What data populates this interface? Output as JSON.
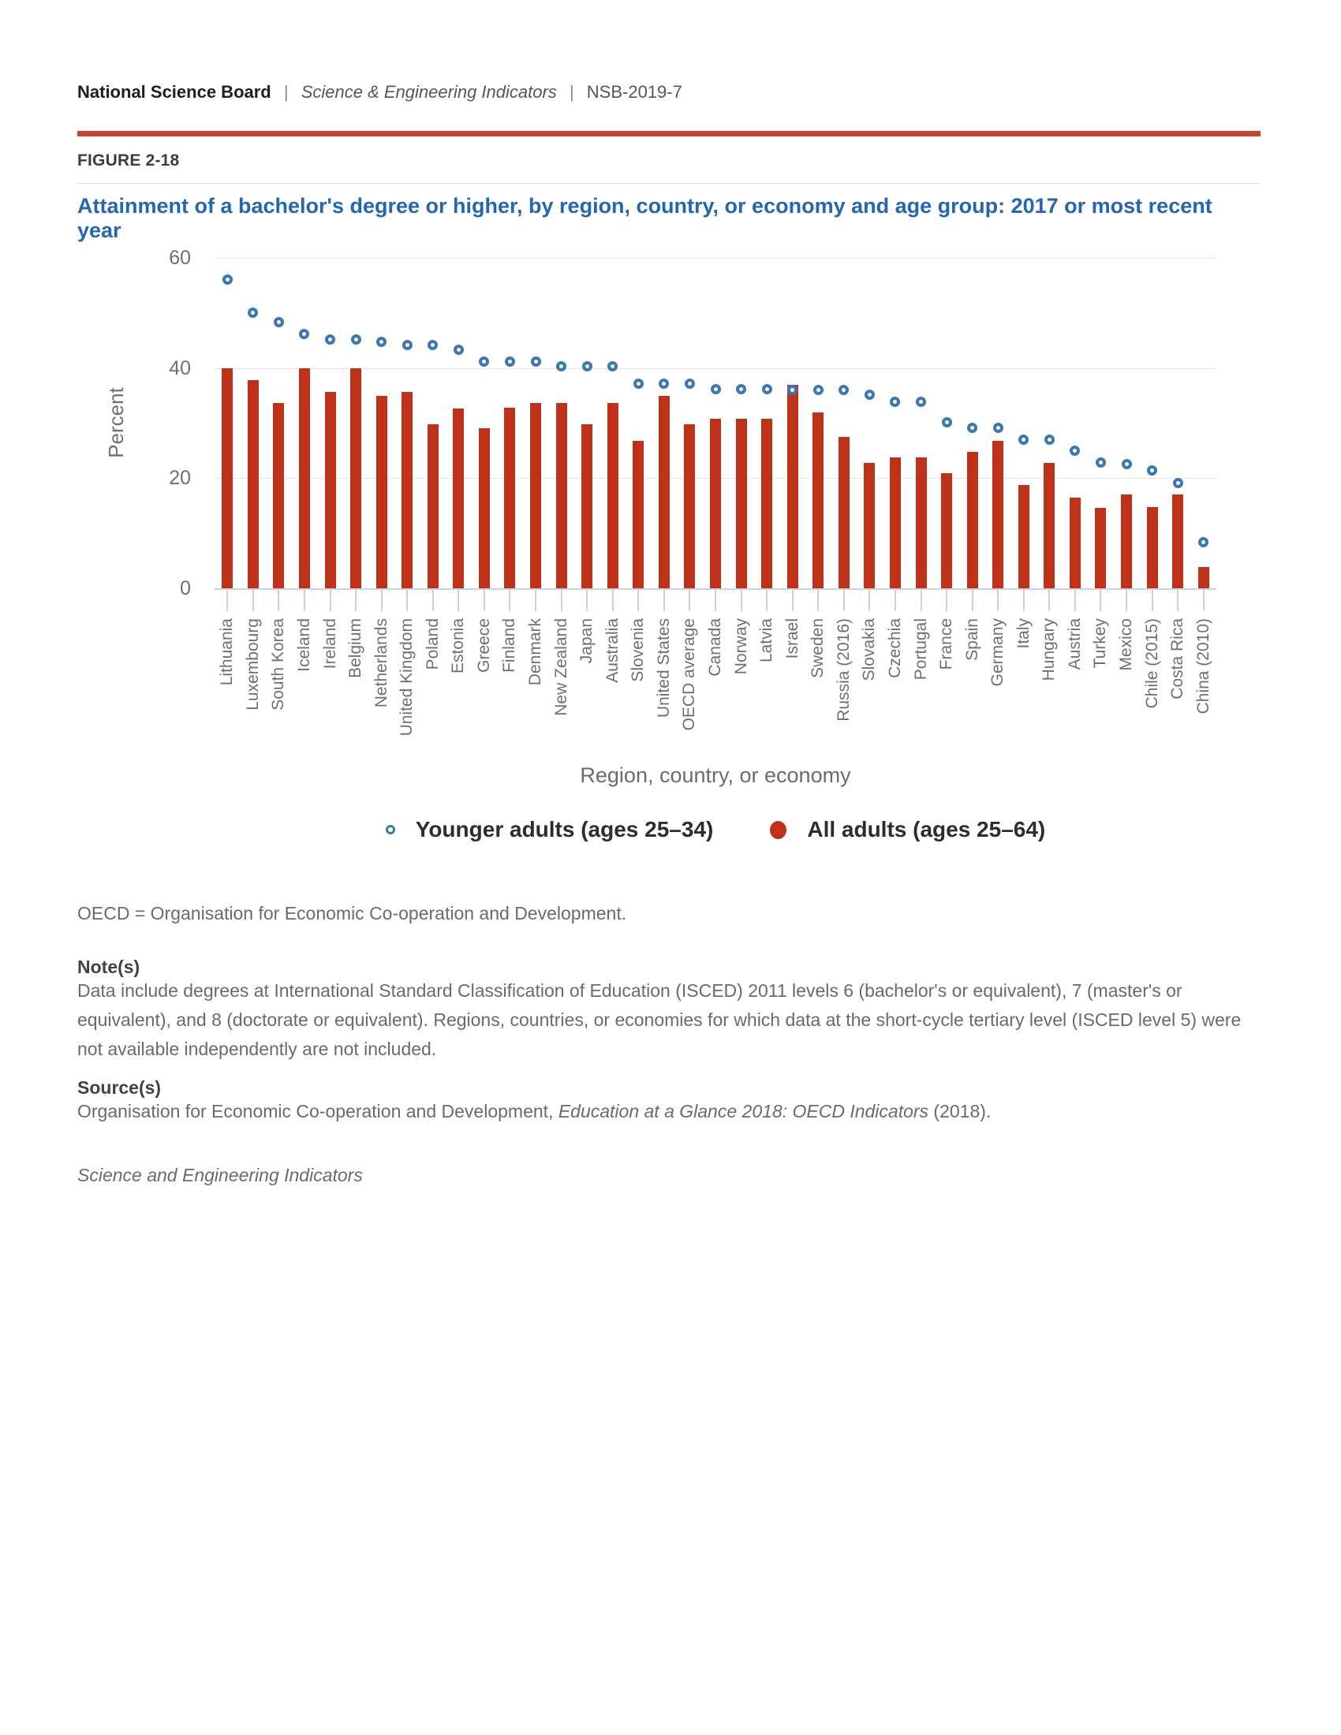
{
  "header": {
    "org": "National Science Board",
    "separator": "|",
    "publication": "Science & Engineering Indicators",
    "report_id": "NSB-2019-7"
  },
  "figure_label": "FIGURE 2-18",
  "title": "Attainment of a bachelor's degree or higher, by region, country, or economy and age group: 2017 or most recent year",
  "chart_data": {
    "type": "bar",
    "subtype": "column-with-scatter-overlay",
    "title": "Attainment of a bachelor's degree or higher, by region, country, or economy and age group: 2017 or most recent year",
    "xlabel": "Region, country, or economy",
    "ylabel": "Percent",
    "ylim": [
      0,
      60
    ],
    "yticks": [
      0,
      20,
      40,
      60
    ],
    "grid": true,
    "legend_position": "bottom",
    "categories": [
      "Lithuania",
      "Luxembourg",
      "South Korea",
      "Iceland",
      "Ireland",
      "Belgium",
      "Netherlands",
      "United Kingdom",
      "Poland",
      "Estonia",
      "Greece",
      "Finland",
      "Denmark",
      "New Zealand",
      "Japan",
      "Australia",
      "Slovenia",
      "United States",
      "OECD average",
      "Canada",
      "Norway",
      "Latvia",
      "Israel",
      "Sweden",
      "Russia (2016)",
      "Slovakia",
      "Czechia",
      "Portugal",
      "France",
      "Spain",
      "Germany",
      "Italy",
      "Hungary",
      "Austria",
      "Turkey",
      "Mexico",
      "Chile (2015)",
      "Costa Rica",
      "China (2010)"
    ],
    "series": [
      {
        "name": "All adults (ages 25–64)",
        "type": "bar",
        "color": "#c0311a",
        "values": [
          40,
          37.8,
          33.7,
          40,
          35.7,
          40,
          34.9,
          35.7,
          29.8,
          32.7,
          29,
          32.8,
          33.7,
          33.7,
          29.8,
          33.7,
          26.8,
          34.9,
          29.8,
          30.8,
          30.8,
          30.8,
          36.9,
          31.9,
          27.5,
          22.7,
          23.7,
          23.7,
          20.9,
          24.7,
          26.8,
          18.8,
          22.7,
          16.5,
          14.6,
          17,
          14.8,
          17,
          3.9
        ]
      },
      {
        "name": "Younger adults (ages 25–34)",
        "type": "scatter",
        "marker": "open-circle",
        "color": "#3a78b5",
        "values": [
          56,
          50,
          48.3,
          46.2,
          45.1,
          45.1,
          44.8,
          44.1,
          44.1,
          43.3,
          41.1,
          41.1,
          41.1,
          40.3,
          40.3,
          40.3,
          37.2,
          37.2,
          37.2,
          36.2,
          36.2,
          36.1,
          36,
          36,
          36,
          35.2,
          33.9,
          33.9,
          30.1,
          29.2,
          29.1,
          27,
          27,
          25,
          22.9,
          22.5,
          21.4,
          19.1,
          8.4
        ]
      }
    ]
  },
  "legend": {
    "younger_label": "Younger adults (ages 25–34)",
    "all_label": "All adults (ages 25–64)"
  },
  "footnotes": {
    "abbreviation": "OECD = Organisation for Economic Co-operation and Development.",
    "notes_heading": "Note(s)",
    "notes_text": "Data include degrees at International Standard Classification of Education (ISCED) 2011 levels 6 (bachelor's or equivalent), 7 (master's or equivalent), and 8 (doctorate or equivalent). Regions, countries, or economies for which data at the short-cycle tertiary level (ISCED level 5) were not available independently are not included.",
    "source_heading": "Source(s)",
    "source_prefix": "Organisation for Economic Co-operation and Development, ",
    "source_italic": "Education at a Glance 2018: OECD Indicators",
    "source_suffix": " (2018).",
    "brand": "Science and Engineering Indicators"
  },
  "colors": {
    "bar_red": "#c0311a",
    "dot_blue": "#3a78b5",
    "title_blue": "#2566b0",
    "rule_red": "#c44831",
    "grid_gray": "#e8e8e8",
    "axis_gray": "#ccd4e0",
    "tick_blue": "#c6d0e6",
    "text_gray": "#6f6f6f"
  }
}
